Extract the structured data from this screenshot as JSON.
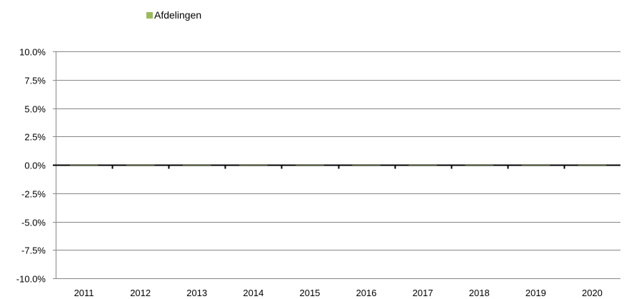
{
  "chart_data": {
    "type": "bar",
    "title": "",
    "xlabel": "",
    "ylabel": "",
    "categories": [
      "2011",
      "2012",
      "2013",
      "2014",
      "2015",
      "2016",
      "2017",
      "2018",
      "2019",
      "2020"
    ],
    "series": [
      {
        "name": "Afdelingen",
        "color": "#9BBB59",
        "values": [
          0,
          0,
          0,
          0,
          0,
          0,
          0,
          0,
          0,
          0
        ]
      }
    ],
    "ylim": [
      -0.1,
      0.1
    ],
    "yticks": [
      0.1,
      0.075,
      0.05,
      0.025,
      0,
      -0.025,
      -0.05,
      -0.075,
      -0.1
    ],
    "ytick_labels": [
      "10.0%",
      "7.5%",
      "5.0%",
      "2.5%",
      "0.0%",
      "-2.5%",
      "-5.0%",
      "-7.5%",
      "-10.0%"
    ],
    "grid": true,
    "legend_position": "top-left",
    "colors": {
      "gridline": "#868686",
      "zero_line": "#000000"
    }
  }
}
